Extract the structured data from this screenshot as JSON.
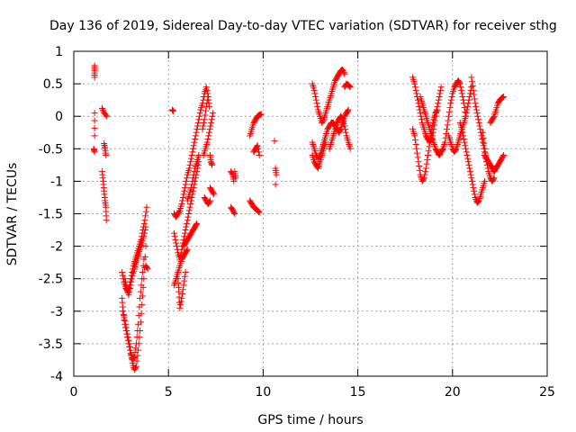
{
  "chart_data": {
    "type": "scatter",
    "title": "Day 136 of 2019, Sidereal Day-to-day VTEC variation (SDTVAR) for receiver sthg",
    "xlabel": "GPS time / hours",
    "ylabel": "SDTVAR / TECUs",
    "xlim": [
      0,
      25
    ],
    "ylim": [
      -4,
      1
    ],
    "xticks": [
      0,
      5,
      10,
      15,
      20,
      25
    ],
    "yticks": [
      -4,
      -3.5,
      -3,
      -2.5,
      -2,
      -1.5,
      -1,
      -0.5,
      0,
      0.5,
      1
    ],
    "xtick_labels": [
      "0",
      "5",
      "10",
      "15",
      "20",
      "25"
    ],
    "ytick_labels": [
      "-4",
      "-3.5",
      "-3",
      "-2.5",
      "-2",
      "-1.5",
      "-1",
      "-0.5",
      "0",
      "0.5",
      "1"
    ],
    "grid": true,
    "marker": "+",
    "color": "#ff0000",
    "tracks": [
      {
        "x": [
          1.1,
          1.1,
          1.1
        ],
        "y": [
          0.78,
          0.7,
          0.6
        ]
      },
      {
        "x": [
          1.1,
          1.1
        ],
        "y": [
          0.05,
          -0.3
        ]
      },
      {
        "x": [
          1.05,
          1.1
        ],
        "y": [
          -0.5,
          -0.55
        ]
      },
      {
        "x": [
          1.5,
          1.6,
          1.75
        ],
        "y": [
          0.12,
          0.05,
          0.0
        ]
      },
      {
        "x": [
          1.6,
          1.65,
          1.7
        ],
        "y": [
          -0.42,
          -0.5,
          -0.6
        ]
      },
      {
        "x": [
          1.5,
          1.55,
          1.6,
          1.65,
          1.7,
          1.72
        ],
        "y": [
          -0.85,
          -1.0,
          -1.15,
          -1.3,
          -1.4,
          -1.6
        ]
      },
      {
        "x": [
          2.55,
          2.65,
          2.75,
          2.85,
          2.95,
          3.05,
          3.15,
          3.25,
          3.35,
          3.45,
          3.55,
          3.65,
          3.75,
          3.85
        ],
        "y": [
          -2.4,
          -2.55,
          -2.65,
          -2.7,
          -2.6,
          -2.45,
          -2.3,
          -2.2,
          -2.1,
          -2.0,
          -1.9,
          -1.75,
          -1.6,
          -1.4
        ]
      },
      {
        "x": [
          2.55,
          2.6,
          2.7,
          2.8,
          2.9,
          3.0,
          3.1,
          3.2,
          3.3,
          3.4,
          3.5,
          3.6,
          3.7,
          3.8
        ],
        "y": [
          -2.8,
          -3.0,
          -3.15,
          -3.3,
          -3.45,
          -3.6,
          -3.8,
          -3.9,
          -3.85,
          -3.6,
          -3.3,
          -2.9,
          -2.5,
          -2.0
        ]
      },
      {
        "x": [
          2.6,
          2.7,
          2.8,
          2.9,
          3.0,
          3.1,
          3.2,
          3.3,
          3.4,
          3.5,
          3.6,
          3.7
        ],
        "y": [
          -3.0,
          -3.2,
          -3.35,
          -3.5,
          -3.65,
          -3.75,
          -3.7,
          -3.5,
          -3.2,
          -2.8,
          -2.5,
          -2.2
        ]
      },
      {
        "x": [
          2.7,
          2.8,
          2.9,
          3.0,
          3.1,
          3.2,
          3.3,
          3.4,
          3.5,
          3.6,
          3.7,
          3.8
        ],
        "y": [
          -2.5,
          -2.65,
          -2.75,
          -2.6,
          -2.45,
          -2.35,
          -2.25,
          -2.15,
          -2.05,
          -1.95,
          -1.85,
          -1.7
        ]
      },
      {
        "x": [
          3.8,
          3.9
        ],
        "y": [
          -2.3,
          -2.35
        ]
      },
      {
        "x": [
          5.2,
          5.25
        ],
        "y": [
          0.1,
          0.08
        ]
      },
      {
        "x": [
          5.3,
          5.4,
          5.5,
          5.6,
          5.7,
          5.8,
          5.9,
          6.0,
          6.1,
          6.2,
          6.3,
          6.4,
          6.5,
          6.6,
          6.7
        ],
        "y": [
          -1.5,
          -1.55,
          -1.5,
          -1.45,
          -1.35,
          -1.2,
          -1.05,
          -0.9,
          -0.8,
          -0.65,
          -0.5,
          -0.35,
          -0.2,
          -0.05,
          0.1
        ]
      },
      {
        "x": [
          5.3,
          5.4,
          5.5,
          5.6,
          5.7,
          5.8,
          5.9,
          6.0,
          6.1,
          6.2,
          6.3,
          6.4,
          6.5,
          6.6
        ],
        "y": [
          -1.8,
          -1.95,
          -2.1,
          -2.2,
          -2.05,
          -1.9,
          -1.75,
          -1.6,
          -1.45,
          -1.3,
          -1.15,
          -1.0,
          -0.85,
          -0.7
        ]
      },
      {
        "x": [
          5.3,
          5.4,
          5.5,
          5.6,
          5.7,
          5.8,
          5.9,
          6.0
        ],
        "y": [
          -2.6,
          -2.5,
          -2.4,
          -2.3,
          -2.2,
          -2.15,
          -2.1,
          -2.05
        ]
      },
      {
        "x": [
          5.5,
          5.55,
          5.6,
          5.7,
          5.8,
          5.9
        ],
        "y": [
          -2.5,
          -2.7,
          -2.95,
          -2.8,
          -2.6,
          -2.4
        ]
      },
      {
        "x": [
          5.8,
          5.9,
          6.0,
          6.1,
          6.2,
          6.3,
          6.4,
          6.5
        ],
        "y": [
          -2.0,
          -1.95,
          -1.9,
          -1.85,
          -1.8,
          -1.75,
          -1.7,
          -1.65
        ]
      },
      {
        "x": [
          6.0,
          6.1,
          6.2,
          6.3,
          6.4,
          6.5,
          6.6
        ],
        "y": [
          -1.3,
          -1.2,
          -1.1,
          -0.95,
          -0.8,
          -0.7,
          -0.6
        ]
      },
      {
        "x": [
          6.7,
          6.8,
          6.9,
          7.0,
          7.1,
          7.15
        ],
        "y": [
          0.1,
          0.2,
          0.35,
          0.45,
          0.3,
          0.15
        ]
      },
      {
        "x": [
          6.8,
          6.9,
          7.0,
          7.1
        ],
        "y": [
          -0.2,
          -0.05,
          0.15,
          0.3
        ]
      },
      {
        "x": [
          6.85,
          6.95,
          7.05,
          7.15,
          7.25,
          7.35
        ],
        "y": [
          -0.6,
          -0.5,
          -0.4,
          -0.25,
          -0.1,
          0.05
        ]
      },
      {
        "x": [
          6.9,
          7.0,
          7.1,
          7.2
        ],
        "y": [
          -1.25,
          -1.3,
          -1.35,
          -1.3
        ]
      },
      {
        "x": [
          7.2,
          7.25,
          7.3
        ],
        "y": [
          -0.6,
          -0.7,
          -0.75
        ]
      },
      {
        "x": [
          7.2,
          7.3,
          7.4
        ],
        "y": [
          -1.1,
          -1.15,
          -1.2
        ]
      },
      {
        "x": [
          8.3,
          8.4,
          8.45
        ],
        "y": [
          -0.85,
          -0.9,
          -1.0
        ]
      },
      {
        "x": [
          8.3,
          8.4,
          8.5
        ],
        "y": [
          -1.4,
          -1.45,
          -1.5
        ]
      },
      {
        "x": [
          8.5,
          8.55
        ],
        "y": [
          -0.85,
          -0.95
        ]
      },
      {
        "x": [
          9.3,
          9.4,
          9.5,
          9.6,
          9.7,
          9.8,
          9.9
        ],
        "y": [
          -0.3,
          -0.2,
          -0.1,
          -0.05,
          0.0,
          0.02,
          0.03
        ]
      },
      {
        "x": [
          9.3,
          9.4,
          9.5,
          9.6,
          9.7,
          9.8
        ],
        "y": [
          -1.3,
          -1.35,
          -1.4,
          -1.42,
          -1.45,
          -1.48
        ]
      },
      {
        "x": [
          9.5,
          9.6,
          9.7,
          9.8
        ],
        "y": [
          -0.55,
          -0.5,
          -0.45,
          -0.6
        ]
      },
      {
        "x": [
          10.6
        ],
        "y": [
          -0.38
        ]
      },
      {
        "x": [
          10.65,
          10.7
        ],
        "y": [
          -0.8,
          -0.9
        ]
      },
      {
        "x": [
          10.65
        ],
        "y": [
          -1.05
        ]
      },
      {
        "x": [
          12.6,
          12.7,
          12.8,
          12.9,
          13.0,
          13.1,
          13.2,
          13.3,
          13.4,
          13.5,
          13.6,
          13.7,
          13.8,
          13.9,
          14.0,
          14.1,
          14.2,
          14.3
        ],
        "y": [
          0.5,
          0.4,
          0.25,
          0.1,
          0.0,
          -0.1,
          -0.05,
          0.05,
          0.15,
          0.25,
          0.35,
          0.45,
          0.55,
          0.6,
          0.65,
          0.7,
          0.72,
          0.65
        ]
      },
      {
        "x": [
          12.6,
          12.7,
          12.8,
          12.9,
          13.0,
          13.1,
          13.2,
          13.3,
          13.4,
          13.5,
          13.6,
          13.7,
          13.8,
          13.9,
          14.0,
          14.1,
          14.2,
          14.3,
          14.4,
          14.5
        ],
        "y": [
          -0.4,
          -0.5,
          -0.6,
          -0.65,
          -0.6,
          -0.5,
          -0.4,
          -0.3,
          -0.2,
          -0.15,
          -0.1,
          -0.1,
          -0.15,
          -0.2,
          -0.25,
          -0.2,
          -0.1,
          0.0,
          0.05,
          0.1
        ]
      },
      {
        "x": [
          12.6,
          12.7,
          12.8,
          12.9,
          13.0,
          13.1,
          13.2,
          13.3
        ],
        "y": [
          -0.6,
          -0.7,
          -0.75,
          -0.8,
          -0.7,
          -0.6,
          -0.5,
          -0.4
        ]
      },
      {
        "x": [
          13.5,
          13.6,
          13.7,
          13.8,
          13.9,
          14.0,
          14.1,
          14.2,
          14.3,
          14.4,
          14.5,
          14.6
        ],
        "y": [
          -0.5,
          -0.4,
          -0.3,
          -0.2,
          -0.1,
          -0.05,
          0.0,
          -0.05,
          -0.15,
          -0.3,
          -0.4,
          -0.5
        ]
      },
      {
        "x": [
          14.3,
          14.4,
          14.5,
          14.6
        ],
        "y": [
          0.45,
          0.5,
          0.48,
          0.45
        ]
      },
      {
        "x": [
          17.9,
          18.0,
          18.1,
          18.2,
          18.3,
          18.4,
          18.5,
          18.6,
          18.7,
          18.8,
          18.9,
          19.0,
          19.1,
          19.2,
          19.3,
          19.4
        ],
        "y": [
          0.6,
          0.5,
          0.35,
          0.2,
          0.05,
          -0.1,
          -0.2,
          -0.3,
          -0.35,
          -0.4,
          -0.35,
          -0.2,
          0.0,
          0.15,
          0.3,
          0.45
        ]
      },
      {
        "x": [
          17.9,
          18.0,
          18.1,
          18.2,
          18.3,
          18.4,
          18.5,
          18.6,
          18.7,
          18.8,
          18.9,
          19.0,
          19.1,
          19.2
        ],
        "y": [
          -0.2,
          -0.3,
          -0.5,
          -0.7,
          -0.9,
          -1.0,
          -0.95,
          -0.8,
          -0.6,
          -0.4,
          -0.2,
          -0.05,
          0.05,
          0.1
        ]
      },
      {
        "x": [
          18.3,
          18.4,
          18.5,
          18.6,
          18.7,
          18.8,
          18.9,
          19.0,
          19.1,
          19.2,
          19.3,
          19.4,
          19.5
        ],
        "y": [
          0.3,
          0.2,
          0.1,
          0.0,
          -0.1,
          -0.2,
          -0.3,
          -0.4,
          -0.5,
          -0.55,
          -0.6,
          -0.55,
          -0.5
        ]
      },
      {
        "x": [
          19.5,
          19.6,
          19.7,
          19.8,
          19.9,
          20.0,
          20.1,
          20.2,
          20.3,
          20.4,
          20.5,
          20.6,
          20.7
        ],
        "y": [
          -0.5,
          -0.4,
          -0.2,
          0.0,
          0.2,
          0.35,
          0.45,
          0.5,
          0.55,
          0.5,
          0.35,
          0.2,
          0.0
        ]
      },
      {
        "x": [
          19.8,
          19.9,
          20.0,
          20.1,
          20.2,
          20.3,
          20.4,
          20.5,
          20.6,
          20.7,
          20.8,
          20.9,
          21.0
        ],
        "y": [
          -0.3,
          -0.4,
          -0.5,
          -0.55,
          -0.5,
          -0.4,
          -0.3,
          -0.2,
          -0.1,
          0.0,
          0.15,
          0.3,
          0.45
        ]
      },
      {
        "x": [
          20.4,
          20.5,
          20.6,
          20.7,
          20.8,
          20.9,
          21.0,
          21.1,
          21.2,
          21.3,
          21.4,
          21.5,
          21.6,
          21.7
        ],
        "y": [
          -0.1,
          -0.2,
          -0.35,
          -0.5,
          -0.65,
          -0.8,
          -0.95,
          -1.1,
          -1.25,
          -1.33,
          -1.3,
          -1.2,
          -1.1,
          -1.0
        ]
      },
      {
        "x": [
          21.0,
          21.1,
          21.2,
          21.3,
          21.4,
          21.5,
          21.6,
          21.7,
          21.8,
          21.9,
          22.0,
          22.1,
          22.2
        ],
        "y": [
          0.6,
          0.4,
          0.2,
          0.05,
          -0.1,
          -0.25,
          -0.4,
          -0.55,
          -0.7,
          -0.85,
          -0.95,
          -1.0,
          -0.95
        ]
      },
      {
        "x": [
          21.7,
          21.8,
          21.9,
          22.0,
          22.1,
          22.2,
          22.3,
          22.4,
          22.5,
          22.6,
          22.7
        ],
        "y": [
          -0.6,
          -0.65,
          -0.7,
          -0.75,
          -0.8,
          -0.85,
          -0.8,
          -0.75,
          -0.7,
          -0.65,
          -0.6
        ]
      },
      {
        "x": [
          22.0,
          22.1,
          22.2,
          22.3,
          22.4,
          22.5,
          22.6,
          22.7
        ],
        "y": [
          -0.1,
          -0.05,
          0.0,
          0.1,
          0.2,
          0.25,
          0.28,
          0.3
        ]
      },
      {
        "x": [
          21.6,
          21.7,
          21.8
        ],
        "y": [
          -0.25,
          -0.5,
          -0.7
        ]
      }
    ]
  }
}
